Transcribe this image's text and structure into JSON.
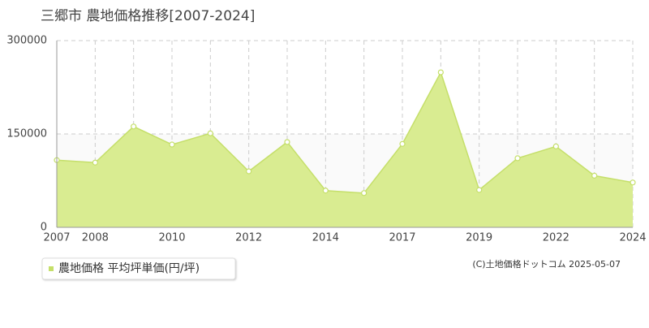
{
  "chart_data": {
    "type": "area",
    "title": "三郷市 農地価格推移[2007-2024]",
    "categories": [
      "2007",
      "2008",
      null,
      "2010",
      null,
      "2012",
      null,
      "2014",
      null,
      "2017",
      null,
      "2019",
      null,
      "2022",
      null,
      "2024"
    ],
    "series": [
      {
        "name": "農地価格 平均坪単価(円/坪)",
        "color": "#c5df6a",
        "values": [
          108000,
          104000,
          162000,
          133000,
          151000,
          90000,
          137000,
          59000,
          55000,
          134000,
          249000,
          60000,
          111000,
          130000,
          83000,
          72000
        ]
      }
    ],
    "ylim": [
      0,
      300000
    ],
    "yticks": [
      0,
      150000,
      300000
    ],
    "grid": true,
    "legend": "bottom-left",
    "credit": "(C)土地価格ドットコム 2025-05-07"
  }
}
